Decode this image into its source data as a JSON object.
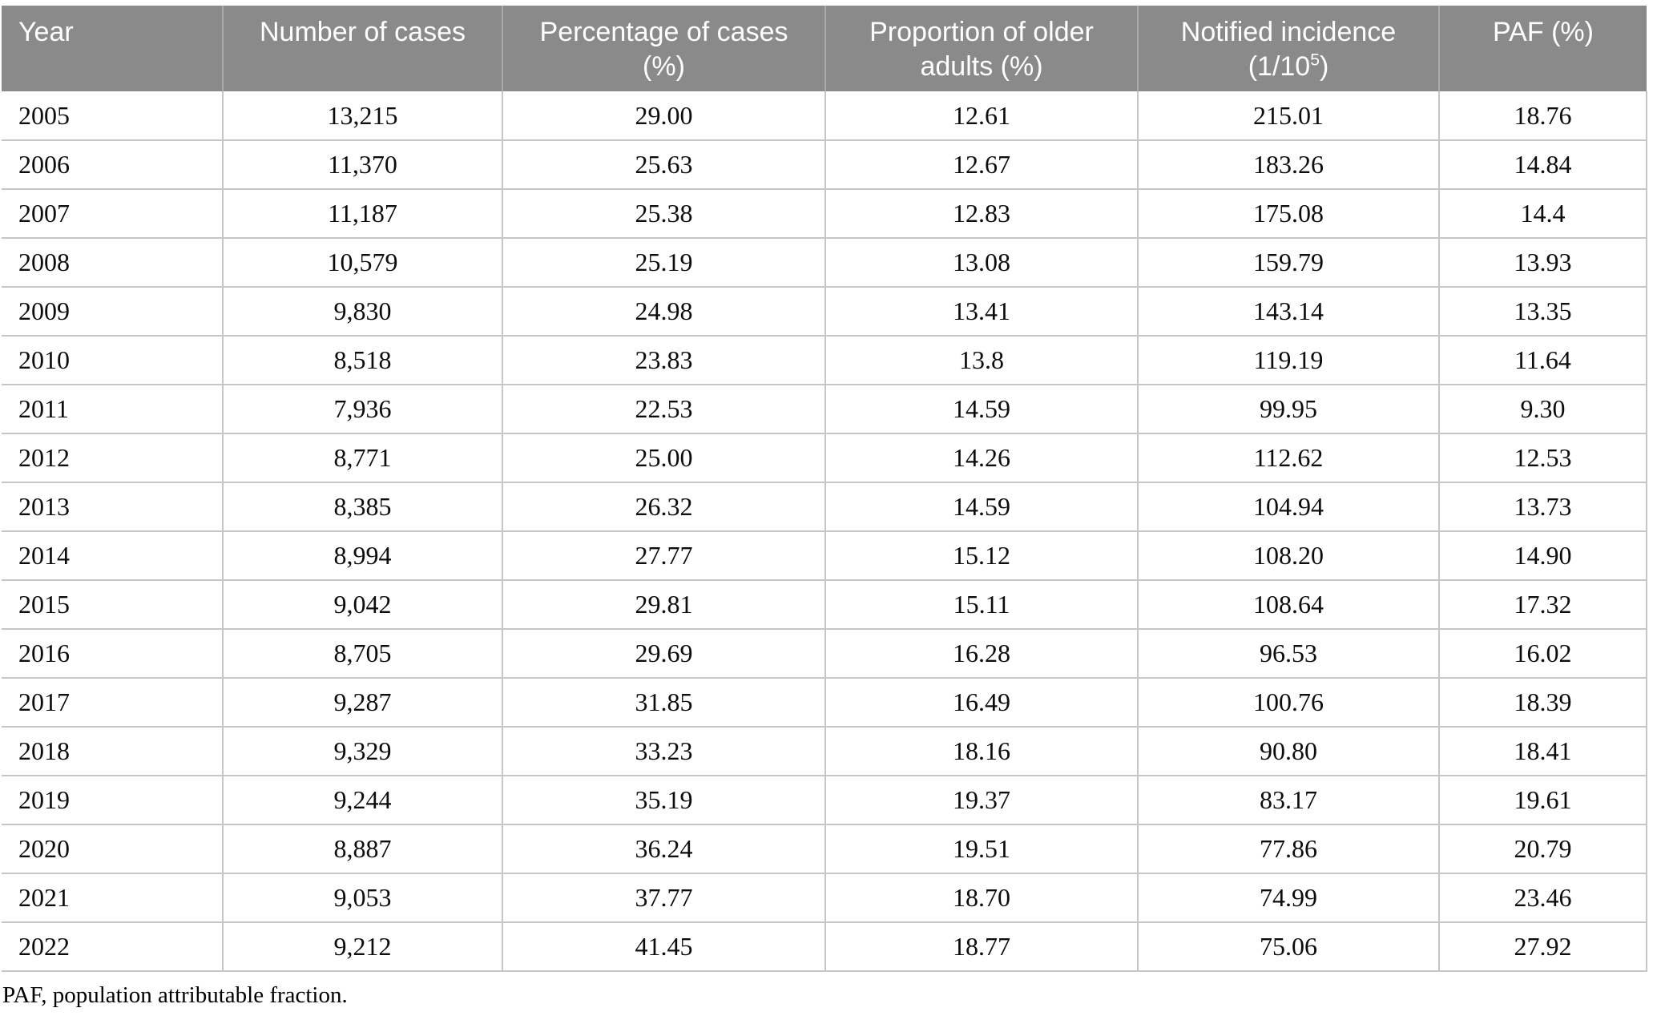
{
  "colors": {
    "header_bg": "#8a8a8a",
    "header_text": "#ffffff",
    "header_divider": "#a9a9a9",
    "row_border": "#c6c6c6",
    "body_text": "#0c0c0c"
  },
  "table": {
    "columns": [
      {
        "line1": "Year"
      },
      {
        "line1": "Number of cases"
      },
      {
        "line1": "Percentage of cases",
        "line2": "(%)"
      },
      {
        "line1": "Proportion of older",
        "line2": "adults (%)"
      },
      {
        "line1": "Notified incidence",
        "line2_pre": "(1/10",
        "line2_sup": "5",
        "line2_post": ")"
      },
      {
        "line1": "PAF (%)"
      }
    ],
    "rows": [
      [
        "2005",
        "13,215",
        "29.00",
        "12.61",
        "215.01",
        "18.76"
      ],
      [
        "2006",
        "11,370",
        "25.63",
        "12.67",
        "183.26",
        "14.84"
      ],
      [
        "2007",
        "11,187",
        "25.38",
        "12.83",
        "175.08",
        "14.4"
      ],
      [
        "2008",
        "10,579",
        "25.19",
        "13.08",
        "159.79",
        "13.93"
      ],
      [
        "2009",
        "9,830",
        "24.98",
        "13.41",
        "143.14",
        "13.35"
      ],
      [
        "2010",
        "8,518",
        "23.83",
        "13.8",
        "119.19",
        "11.64"
      ],
      [
        "2011",
        "7,936",
        "22.53",
        "14.59",
        "99.95",
        "9.30"
      ],
      [
        "2012",
        "8,771",
        "25.00",
        "14.26",
        "112.62",
        "12.53"
      ],
      [
        "2013",
        "8,385",
        "26.32",
        "14.59",
        "104.94",
        "13.73"
      ],
      [
        "2014",
        "8,994",
        "27.77",
        "15.12",
        "108.20",
        "14.90"
      ],
      [
        "2015",
        "9,042",
        "29.81",
        "15.11",
        "108.64",
        "17.32"
      ],
      [
        "2016",
        "8,705",
        "29.69",
        "16.28",
        "96.53",
        "16.02"
      ],
      [
        "2017",
        "9,287",
        "31.85",
        "16.49",
        "100.76",
        "18.39"
      ],
      [
        "2018",
        "9,329",
        "33.23",
        "18.16",
        "90.80",
        "18.41"
      ],
      [
        "2019",
        "9,244",
        "35.19",
        "19.37",
        "83.17",
        "19.61"
      ],
      [
        "2020",
        "8,887",
        "36.24",
        "19.51",
        "77.86",
        "20.79"
      ],
      [
        "2021",
        "9,053",
        "37.77",
        "18.70",
        "74.99",
        "23.46"
      ],
      [
        "2022",
        "9,212",
        "41.45",
        "18.77",
        "75.06",
        "27.92"
      ]
    ],
    "footnote": "PAF, population attributable fraction."
  }
}
